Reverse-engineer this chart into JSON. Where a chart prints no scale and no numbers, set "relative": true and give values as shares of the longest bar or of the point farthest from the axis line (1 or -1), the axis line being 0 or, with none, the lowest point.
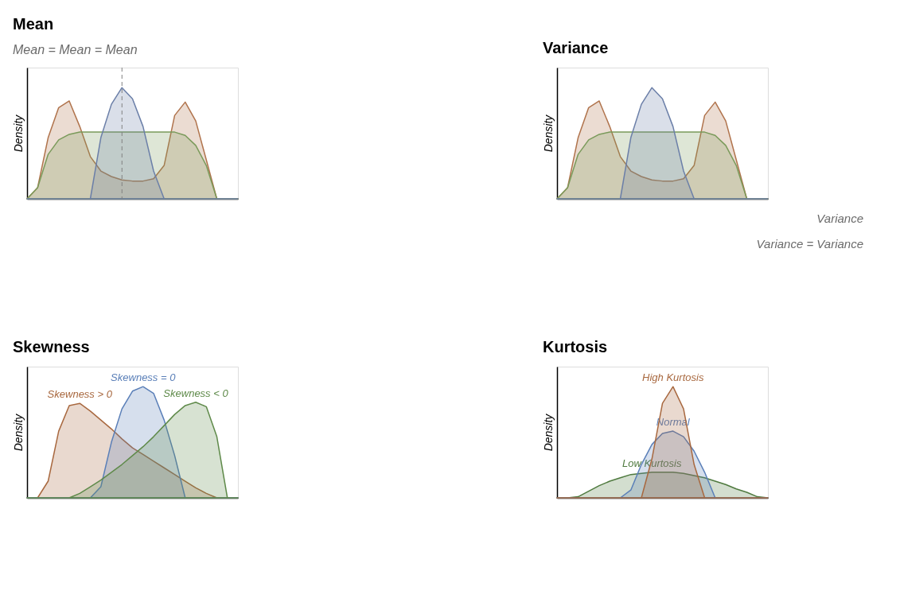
{
  "chart_data": [
    {
      "type": "area",
      "title": "Mean",
      "subtitle": "Mean = Mean = Mean",
      "ylabel": "Density",
      "relative": true,
      "categories": [
        null,
        null,
        null,
        null,
        null,
        null,
        null,
        null,
        null,
        null,
        null,
        null,
        null,
        null,
        null,
        null,
        null,
        null,
        null,
        null,
        null
      ],
      "series": [
        {
          "color": "#b0734c",
          "values": [
            0,
            0.1,
            0.55,
            0.82,
            0.88,
            0.65,
            0.38,
            0.25,
            0.2,
            0.17,
            0.16,
            0.16,
            0.18,
            0.3,
            0.75,
            0.87,
            0.7,
            0.35,
            0,
            0,
            0
          ]
        },
        {
          "color": "#7a9a5a",
          "values": [
            0,
            0.1,
            0.4,
            0.53,
            0.58,
            0.6,
            0.6,
            0.6,
            0.6,
            0.6,
            0.6,
            0.6,
            0.6,
            0.6,
            0.6,
            0.57,
            0.48,
            0.3,
            0,
            0,
            0
          ]
        },
        {
          "color": "#6b7fa8",
          "values": [
            0,
            0,
            0,
            0,
            0,
            0,
            0,
            0.55,
            0.85,
            1.0,
            0.9,
            0.65,
            0.25,
            0,
            0,
            0,
            0,
            0,
            0,
            0,
            0
          ]
        }
      ]
    },
    {
      "type": "area",
      "title": "Variance",
      "ylabel": "Density",
      "relative": true,
      "annotations": [
        "Variance",
        "Variance = Variance"
      ],
      "categories": [
        null,
        null,
        null,
        null,
        null,
        null,
        null,
        null,
        null,
        null,
        null,
        null,
        null,
        null,
        null,
        null,
        null,
        null,
        null,
        null,
        null
      ],
      "series": [
        {
          "color": "#b0734c",
          "values": [
            0,
            0.1,
            0.55,
            0.82,
            0.88,
            0.65,
            0.38,
            0.25,
            0.2,
            0.17,
            0.16,
            0.16,
            0.18,
            0.3,
            0.75,
            0.87,
            0.7,
            0.35,
            0,
            0,
            0
          ]
        },
        {
          "color": "#7a9a5a",
          "values": [
            0,
            0.1,
            0.4,
            0.53,
            0.58,
            0.6,
            0.6,
            0.6,
            0.6,
            0.6,
            0.6,
            0.6,
            0.6,
            0.6,
            0.6,
            0.57,
            0.48,
            0.3,
            0,
            0,
            0
          ]
        },
        {
          "color": "#6b7fa8",
          "values": [
            0,
            0,
            0,
            0,
            0,
            0,
            0,
            0.55,
            0.85,
            1.0,
            0.9,
            0.65,
            0.25,
            0,
            0,
            0,
            0,
            0,
            0,
            0,
            0
          ]
        }
      ]
    },
    {
      "type": "area",
      "title": "Skewness",
      "ylabel": "Density",
      "relative": true,
      "categories": [
        null,
        null,
        null,
        null,
        null,
        null,
        null,
        null,
        null,
        null,
        null,
        null,
        null,
        null,
        null,
        null,
        null,
        null,
        null,
        null,
        null
      ],
      "series": [
        {
          "name": "Skewness > 0",
          "color": "#a8683f",
          "values": [
            0,
            0,
            0.15,
            0.6,
            0.83,
            0.85,
            0.78,
            0.7,
            0.62,
            0.53,
            0.45,
            0.39,
            0.33,
            0.27,
            0.21,
            0.15,
            0.09,
            0.04,
            0,
            0,
            0
          ]
        },
        {
          "name": "Skewness = 0",
          "color": "#5a7fb8",
          "values": [
            0,
            0,
            0,
            0,
            0,
            0,
            0,
            0.1,
            0.5,
            0.8,
            0.96,
            1.0,
            0.94,
            0.7,
            0.38,
            0,
            0,
            0,
            0,
            0,
            0
          ]
        },
        {
          "name": "Skewness < 0",
          "color": "#5f8a4a",
          "values": [
            0,
            0,
            0,
            0,
            0,
            0.04,
            0.1,
            0.16,
            0.23,
            0.3,
            0.38,
            0.46,
            0.55,
            0.65,
            0.75,
            0.83,
            0.86,
            0.82,
            0.55,
            0,
            0
          ]
        }
      ]
    },
    {
      "type": "area",
      "title": "Kurtosis",
      "ylabel": "Density",
      "relative": true,
      "categories": [
        null,
        null,
        null,
        null,
        null,
        null,
        null,
        null,
        null,
        null,
        null,
        null,
        null,
        null,
        null,
        null,
        null,
        null,
        null,
        null,
        null
      ],
      "series": [
        {
          "name": "Low Kurtosis",
          "color": "#4f7a3f",
          "values": [
            0,
            0,
            0.01,
            0.06,
            0.11,
            0.15,
            0.18,
            0.21,
            0.22,
            0.23,
            0.23,
            0.23,
            0.22,
            0.2,
            0.18,
            0.15,
            0.12,
            0.08,
            0.05,
            0.01,
            0
          ]
        },
        {
          "name": "Normal",
          "color": "#5a7fb8",
          "values": [
            0,
            0,
            0,
            0,
            0,
            0,
            0,
            0.07,
            0.3,
            0.48,
            0.58,
            0.6,
            0.55,
            0.42,
            0.23,
            0,
            0,
            0,
            0,
            0,
            0
          ]
        },
        {
          "name": "High Kurtosis",
          "color": "#a8683f",
          "values": [
            0,
            0,
            0,
            0,
            0,
            0,
            0,
            0,
            0,
            0.35,
            0.85,
            1.0,
            0.8,
            0.3,
            0,
            0,
            0,
            0,
            0,
            0,
            0
          ]
        }
      ]
    }
  ]
}
